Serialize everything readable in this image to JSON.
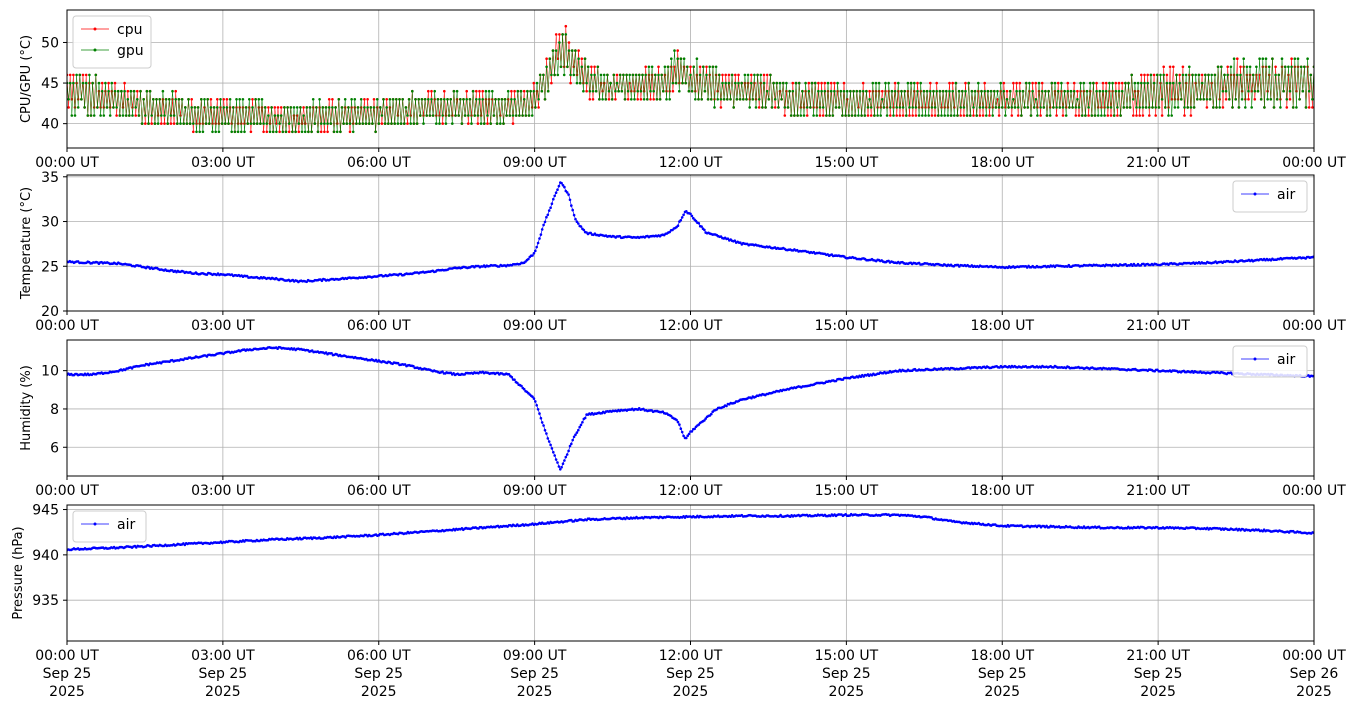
{
  "figure": {
    "background": "#ffffff"
  },
  "time_axis": {
    "start_hour": 0,
    "end_hour": 24,
    "ticks": [
      {
        "hour": 0,
        "time": "00:00 UT",
        "day": "Sep 25",
        "year": "2025"
      },
      {
        "hour": 3,
        "time": "03:00 UT",
        "day": "Sep 25",
        "year": "2025"
      },
      {
        "hour": 6,
        "time": "06:00 UT",
        "day": "Sep 25",
        "year": "2025"
      },
      {
        "hour": 9,
        "time": "09:00 UT",
        "day": "Sep 25",
        "year": "2025"
      },
      {
        "hour": 12,
        "time": "12:00 UT",
        "day": "Sep 25",
        "year": "2025"
      },
      {
        "hour": 15,
        "time": "15:00 UT",
        "day": "Sep 25",
        "year": "2025"
      },
      {
        "hour": 18,
        "time": "18:00 UT",
        "day": "Sep 25",
        "year": "2025"
      },
      {
        "hour": 21,
        "time": "21:00 UT",
        "day": "Sep 25",
        "year": "2025"
      },
      {
        "hour": 24,
        "time": "00:00 UT",
        "day": "Sep 26",
        "year": "2025"
      }
    ]
  },
  "chart_data": [
    {
      "id": "cpu_gpu",
      "type": "line",
      "ylabel": "CPU/GPU (°C)",
      "ylim": [
        37,
        54
      ],
      "yticks": [
        40,
        45,
        50
      ],
      "grid": true,
      "legend": "upper-left",
      "series": [
        {
          "name": "cpu",
          "color": "#ff0000",
          "x": [
            0,
            0.5,
            1,
            1.5,
            2,
            2.5,
            3,
            3.5,
            4,
            4.5,
            5,
            5.5,
            6,
            6.5,
            7,
            7.5,
            8,
            8.5,
            9,
            9.25,
            9.5,
            9.75,
            10,
            10.5,
            11,
            11.5,
            11.75,
            12,
            12.5,
            13,
            13.5,
            14,
            15,
            16,
            17,
            18,
            19,
            20,
            21,
            22,
            23,
            24
          ],
          "lo": [
            41,
            41,
            41,
            40,
            39.5,
            39,
            39,
            39,
            38.5,
            38.5,
            39,
            39,
            39.5,
            39.5,
            40,
            40,
            40,
            40,
            41,
            43,
            47,
            45,
            43,
            42.5,
            43,
            43,
            44,
            43,
            42,
            42,
            41.5,
            41,
            40.5,
            40.5,
            40.5,
            40.5,
            40.5,
            40.5,
            41,
            41.5,
            42,
            42
          ],
          "hi": [
            47,
            46,
            45,
            44,
            44,
            43,
            43.5,
            43,
            42.5,
            42.5,
            43,
            43,
            43,
            43.5,
            44,
            44,
            44,
            44,
            45,
            48,
            53,
            50,
            48,
            46,
            47,
            47,
            49.5,
            48,
            47,
            46,
            46,
            45.5,
            45,
            45,
            45,
            45,
            45,
            45,
            46.5,
            47.5,
            48,
            48
          ]
        },
        {
          "name": "gpu",
          "color": "#008000",
          "x": [
            0,
            0.5,
            1,
            1.5,
            2,
            2.5,
            3,
            3.5,
            4,
            4.5,
            5,
            5.5,
            6,
            6.5,
            7,
            7.5,
            8,
            8.5,
            9,
            9.25,
            9.5,
            9.75,
            10,
            10.5,
            11,
            11.5,
            11.75,
            12,
            12.5,
            13,
            13.5,
            14,
            15,
            16,
            17,
            18,
            19,
            20,
            21,
            22,
            23,
            24
          ],
          "lo": [
            41,
            41,
            40.5,
            40,
            39.5,
            39,
            39,
            39,
            38.5,
            38.5,
            39,
            39,
            39.5,
            39.5,
            40,
            40,
            40,
            40,
            41,
            43,
            46,
            45,
            43,
            42.5,
            43,
            43,
            44,
            43,
            42,
            42,
            41.5,
            41,
            40.5,
            40.5,
            40.5,
            40.5,
            40.5,
            40.5,
            41,
            41.5,
            42,
            42
          ],
          "hi": [
            47,
            46,
            45,
            44,
            44,
            43,
            43.5,
            43,
            42.5,
            42.5,
            43,
            43,
            43,
            43.5,
            44,
            44,
            44,
            44,
            45,
            48,
            52,
            50,
            48,
            46,
            47,
            47,
            50,
            48,
            47,
            46,
            46,
            45.5,
            45,
            45,
            45,
            45,
            45,
            45,
            46.5,
            47.5,
            48.5,
            48.5
          ]
        }
      ]
    },
    {
      "id": "temperature",
      "type": "line",
      "ylabel": "Temperature (°C)",
      "ylim": [
        20,
        35.2
      ],
      "yticks": [
        20,
        25,
        30,
        35
      ],
      "grid": true,
      "legend": "upper-right",
      "series": [
        {
          "name": "air",
          "color": "#0000ff",
          "x": [
            0,
            1,
            1.5,
            2,
            2.5,
            3,
            3.5,
            4,
            4.5,
            5,
            5.5,
            6,
            6.5,
            7,
            7.5,
            8,
            8.5,
            8.8,
            9,
            9.2,
            9.5,
            9.65,
            9.8,
            10,
            10.5,
            11,
            11.5,
            11.75,
            11.9,
            12,
            12.3,
            13,
            14,
            15,
            16,
            17,
            18,
            19,
            20,
            21,
            22,
            23,
            24
          ],
          "y": [
            25.5,
            25.3,
            24.9,
            24.5,
            24.2,
            24.1,
            23.8,
            23.6,
            23.3,
            23.5,
            23.7,
            23.9,
            24.1,
            24.4,
            24.8,
            25.0,
            25.1,
            25.4,
            26.5,
            30,
            34.5,
            33,
            30,
            28.7,
            28.3,
            28.2,
            28.5,
            29.5,
            31.2,
            30.8,
            28.8,
            27.5,
            26.8,
            26.0,
            25.4,
            25.1,
            24.9,
            25.0,
            25.1,
            25.2,
            25.4,
            25.7,
            26.0
          ]
        }
      ]
    },
    {
      "id": "humidity",
      "type": "line",
      "ylabel": "Humidity (%)",
      "ylim": [
        4.5,
        11.6
      ],
      "yticks": [
        6,
        8,
        10
      ],
      "grid": true,
      "legend": "upper-right",
      "series": [
        {
          "name": "air",
          "color": "#0000ff",
          "x": [
            0,
            0.5,
            1,
            1.5,
            2,
            2.5,
            3,
            3.5,
            4,
            4.5,
            5,
            5.5,
            6,
            6.5,
            7,
            7.5,
            8,
            8.5,
            9,
            9.25,
            9.5,
            9.75,
            10,
            10.5,
            11,
            11.5,
            11.75,
            11.9,
            12,
            12.5,
            13,
            14,
            15,
            16,
            17,
            18,
            19,
            20,
            21,
            22,
            23,
            24
          ],
          "y": [
            9.8,
            9.8,
            10.0,
            10.3,
            10.5,
            10.7,
            10.9,
            11.1,
            11.2,
            11.1,
            10.9,
            10.7,
            10.5,
            10.3,
            10.0,
            9.8,
            9.9,
            9.8,
            8.5,
            6.5,
            4.8,
            6.5,
            7.7,
            7.9,
            8.0,
            7.8,
            7.4,
            6.4,
            6.8,
            8.0,
            8.5,
            9.1,
            9.6,
            10.0,
            10.1,
            10.2,
            10.2,
            10.1,
            10.0,
            9.9,
            9.8,
            9.7
          ]
        }
      ]
    },
    {
      "id": "pressure",
      "type": "line",
      "ylabel": "Pressure (hPa)",
      "ylim": [
        930.5,
        945.5
      ],
      "yticks": [
        935,
        940,
        945
      ],
      "grid": true,
      "legend": "upper-left",
      "series": [
        {
          "name": "air",
          "color": "#0000ff",
          "x": [
            0,
            1,
            2,
            3,
            4,
            5,
            6,
            7,
            8,
            9,
            10,
            11,
            12,
            13,
            14,
            15,
            16,
            16.5,
            17,
            18,
            19,
            20,
            21,
            22,
            23,
            24
          ],
          "y": [
            940.6,
            940.8,
            941.1,
            941.4,
            941.7,
            941.9,
            942.2,
            942.6,
            943.0,
            943.4,
            943.9,
            944.1,
            944.2,
            944.3,
            944.3,
            944.4,
            944.4,
            944.2,
            943.7,
            943.2,
            943.1,
            943.0,
            943.0,
            942.9,
            942.7,
            942.4
          ]
        }
      ]
    }
  ]
}
